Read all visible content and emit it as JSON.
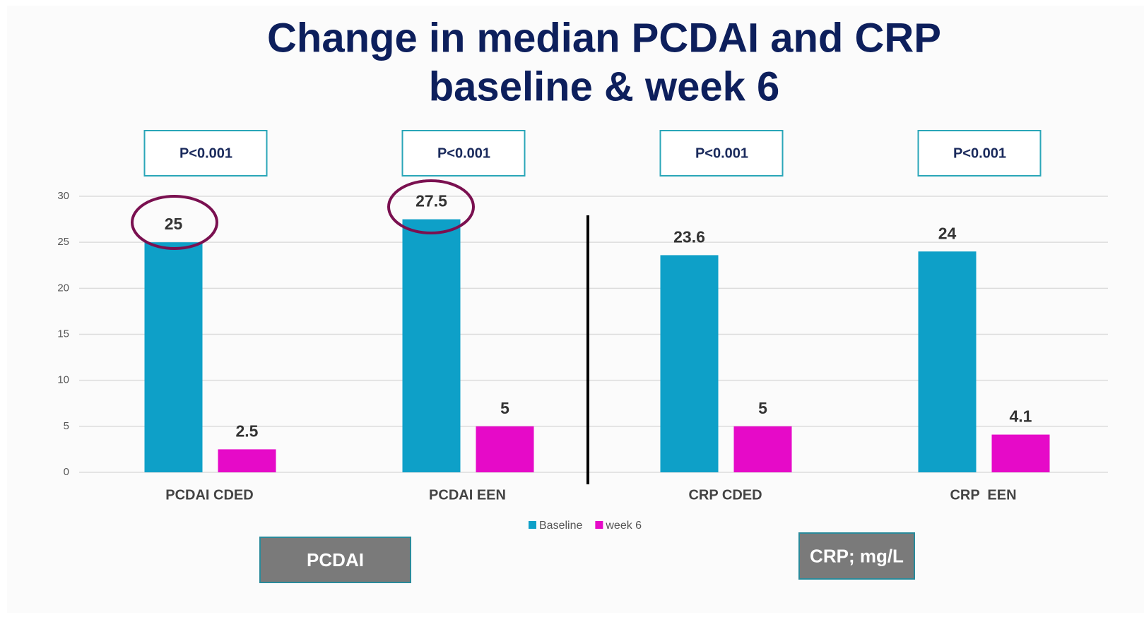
{
  "chart_data": {
    "type": "bar",
    "title": [
      "Change in median PCDAI and CRP",
      "baseline & week 6"
    ],
    "categories": [
      "PCDAI CDED",
      "PCDAI EEN",
      "CRP CDED",
      "CRP  EEN"
    ],
    "series": [
      {
        "name": "Baseline",
        "color": "#0ea0c8",
        "values": [
          25,
          27.5,
          23.6,
          24
        ]
      },
      {
        "name": "week 6",
        "color": "#e60ac8",
        "values": [
          2.5,
          5,
          5,
          4.1
        ]
      }
    ],
    "annotations": [
      "P<0.001",
      "P<0.001",
      "P<0.001",
      "P<0.001"
    ],
    "group_labels": [
      "PCDAI",
      "CRP; mg/L"
    ],
    "ylim": [
      0,
      30
    ],
    "yticks": [
      0,
      5,
      10,
      15,
      20,
      25,
      30
    ],
    "grid": true,
    "legend": "bottom"
  }
}
